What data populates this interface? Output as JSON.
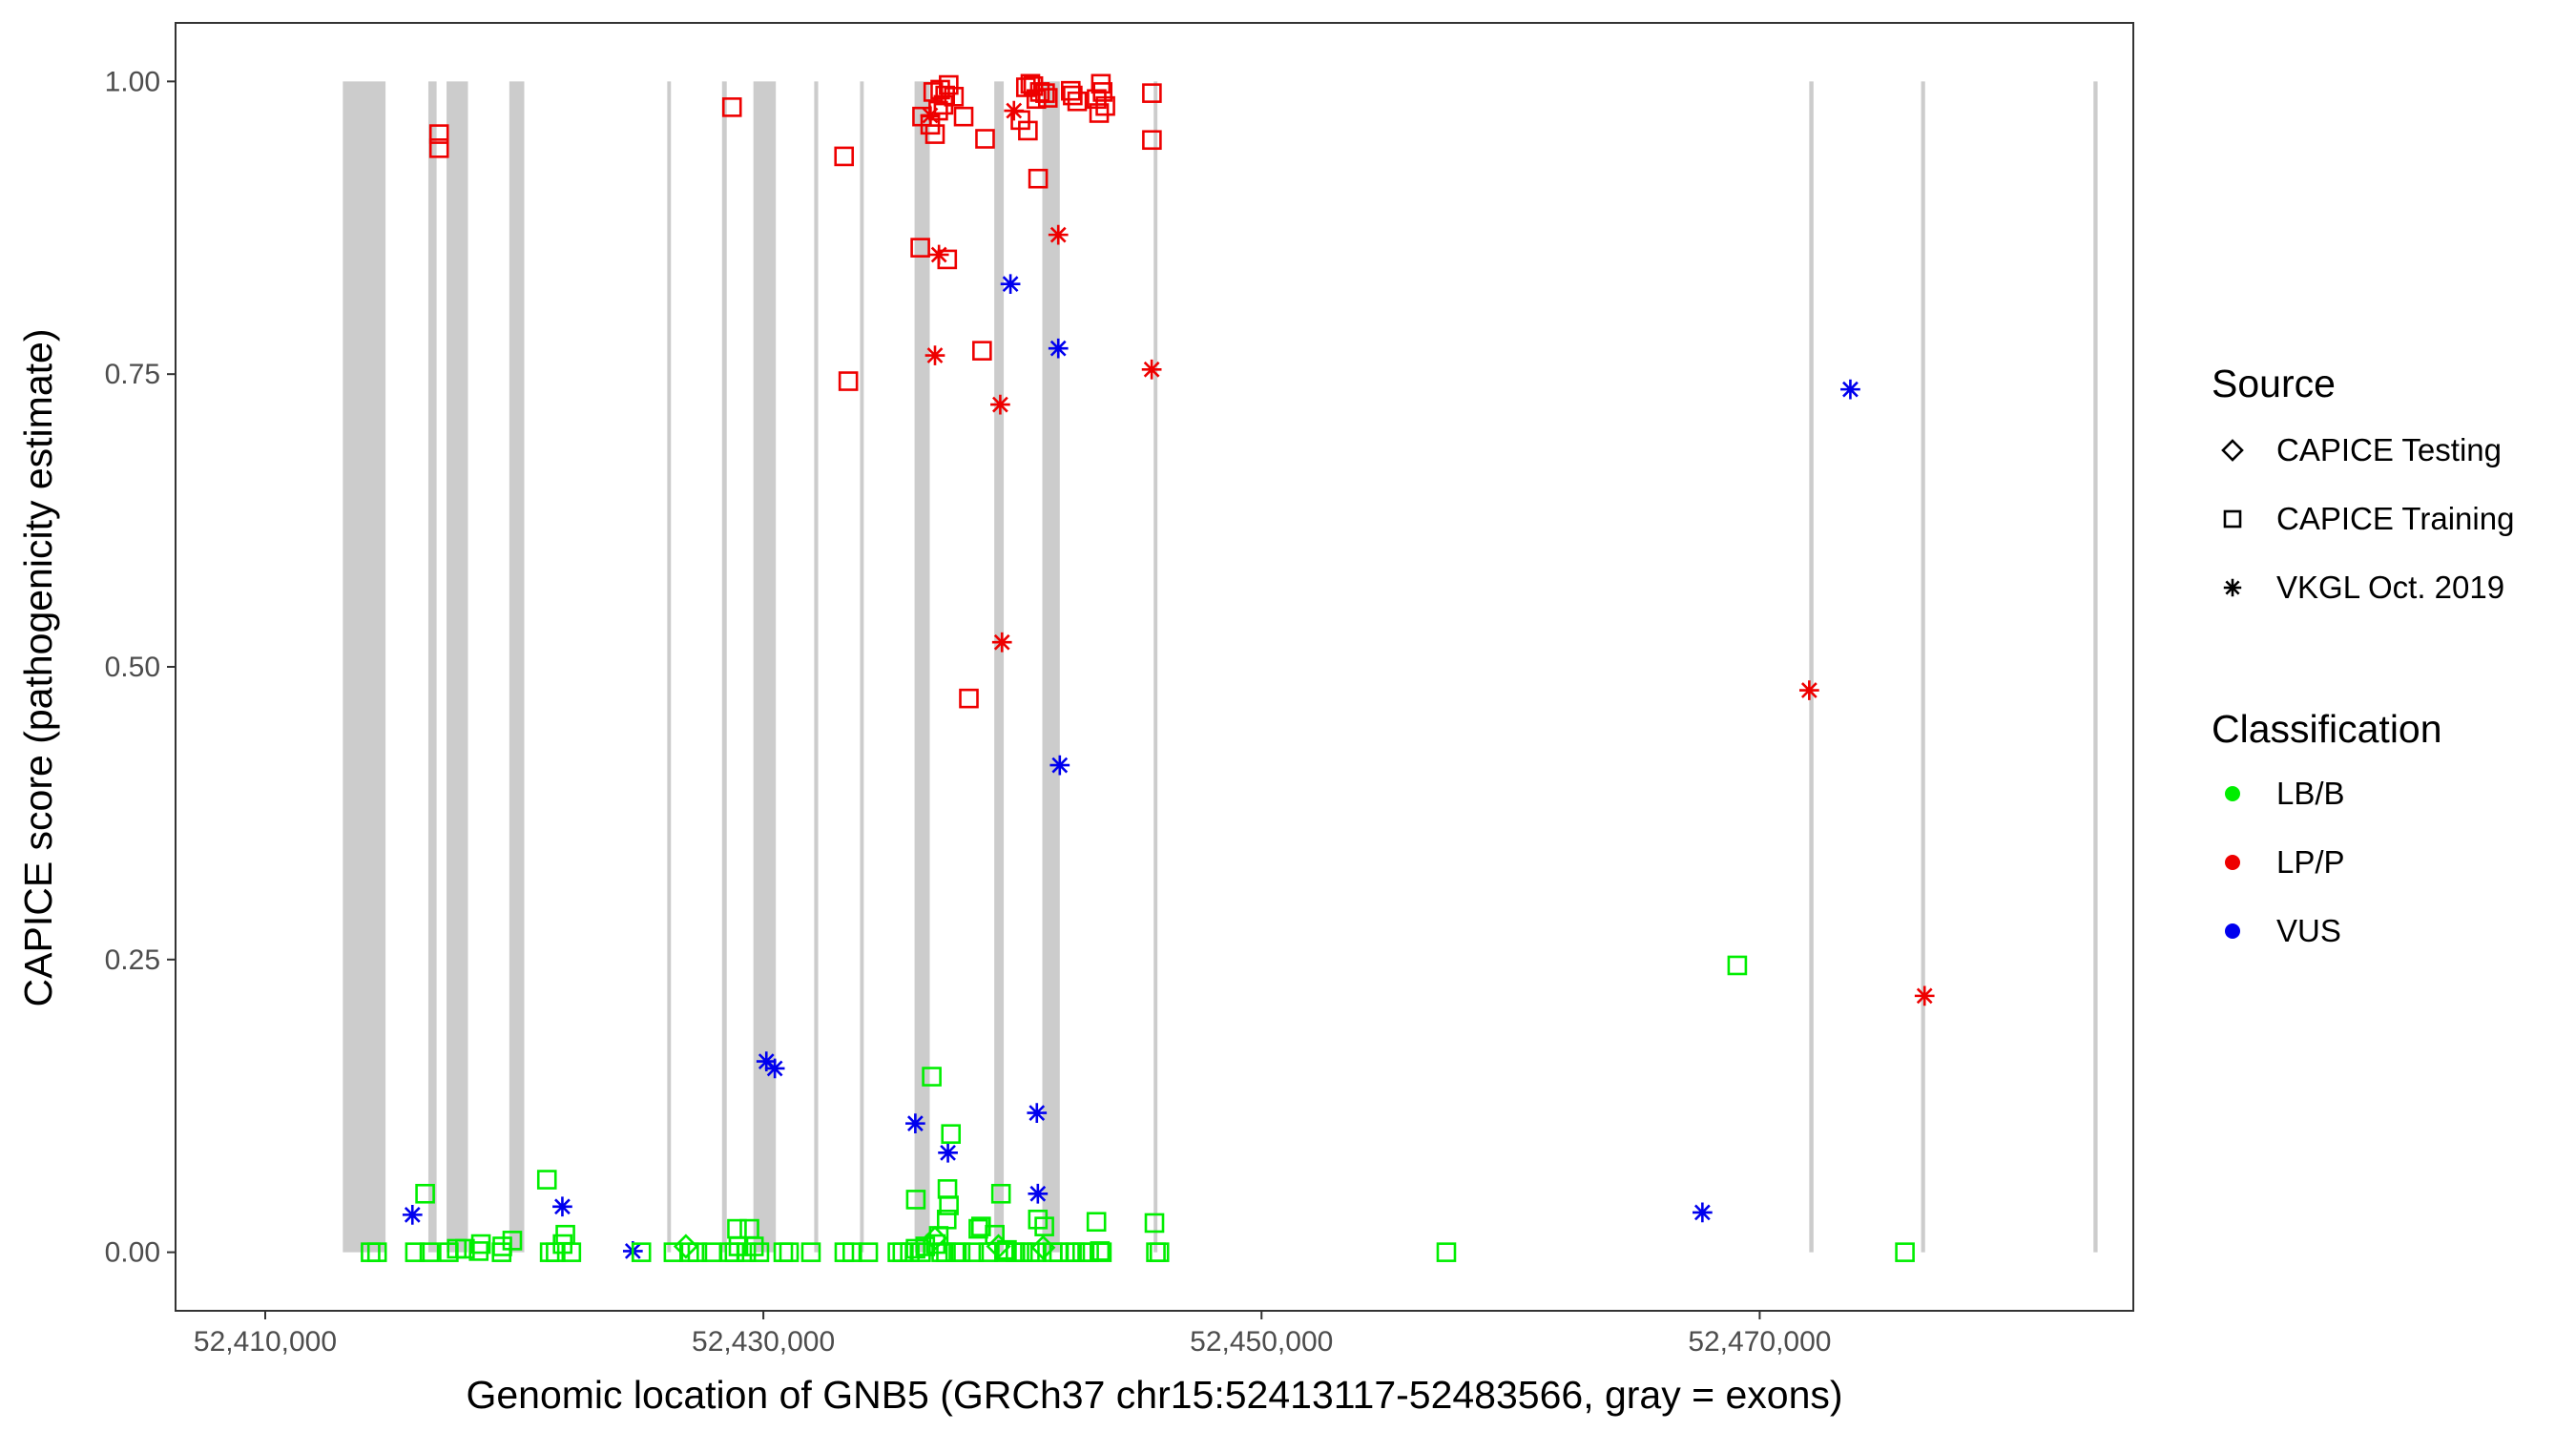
{
  "chart_data": {
    "type": "scatter",
    "title": "",
    "xlabel": "Genomic location of GNB5 (GRCh37 chr15:52413117-52483566, gray = exons)",
    "ylabel": "CAPICE score (pathogenicity estimate)",
    "xlim": [
      52406400,
      52485000
    ],
    "ylim": [
      -0.05,
      1.05
    ],
    "x_ticks": [
      {
        "value": 52410000,
        "label": "52,410,000"
      },
      {
        "value": 52430000,
        "label": "52,430,000"
      },
      {
        "value": 52450000,
        "label": "52,450,000"
      },
      {
        "value": 52470000,
        "label": "52,470,000"
      }
    ],
    "y_ticks": [
      {
        "value": 0.0,
        "label": "0.00"
      },
      {
        "value": 0.25,
        "label": "0.25"
      },
      {
        "value": 0.5,
        "label": "0.50"
      },
      {
        "value": 0.75,
        "label": "0.75"
      },
      {
        "value": 1.0,
        "label": "1.00"
      }
    ],
    "grid": false,
    "exons": [
      [
        52413117,
        52414830
      ],
      [
        52416550,
        52416880
      ],
      [
        52417280,
        52418140
      ],
      [
        52419800,
        52420400
      ],
      [
        52426140,
        52426290
      ],
      [
        52428340,
        52428530
      ],
      [
        52429600,
        52430500
      ],
      [
        52432040,
        52432200
      ],
      [
        52433880,
        52434030
      ],
      [
        52436070,
        52436680
      ],
      [
        52439270,
        52439650
      ],
      [
        52441200,
        52441900
      ],
      [
        52445670,
        52445820
      ],
      [
        52471990,
        52472160
      ],
      [
        52476480,
        52476640
      ],
      [
        52483400,
        52483566
      ]
    ],
    "legend": {
      "placement": "right",
      "shape_title": "Source",
      "shape_items": [
        {
          "label": "CAPICE Testing",
          "shape": "diamond"
        },
        {
          "label": "CAPICE Training",
          "shape": "square"
        },
        {
          "label": "VKGL Oct. 2019",
          "shape": "asterisk"
        }
      ],
      "color_title": "Classification",
      "color_items": [
        {
          "label": "LB/B",
          "color": "#00ee00"
        },
        {
          "label": "LP/P",
          "color": "#ee0000"
        },
        {
          "label": "VUS",
          "color": "#0000ee"
        }
      ]
    },
    "series": [
      {
        "source": "CAPICE Training",
        "classification": "LP/P",
        "shape": "square",
        "color": "#ee0000",
        "points": [
          [
            52416980,
            0.955
          ],
          [
            52416980,
            0.943
          ],
          [
            52428740,
            0.978
          ],
          [
            52433240,
            0.936
          ],
          [
            52433410,
            0.744
          ],
          [
            52436300,
            0.858
          ],
          [
            52436370,
            0.97
          ],
          [
            52436700,
            0.963
          ],
          [
            52436820,
            0.991
          ],
          [
            52436890,
            0.955
          ],
          [
            52437020,
            0.975
          ],
          [
            52437100,
            0.993
          ],
          [
            52437230,
            0.98
          ],
          [
            52437300,
            0.988
          ],
          [
            52437440,
            0.997
          ],
          [
            52437380,
            0.848
          ],
          [
            52437650,
            0.987
          ],
          [
            52438040,
            0.97
          ],
          [
            52438250,
            0.473
          ],
          [
            52438780,
            0.77
          ],
          [
            52438900,
            0.951
          ],
          [
            52440320,
            0.967
          ],
          [
            52440540,
            0.995
          ],
          [
            52440620,
            0.958
          ],
          [
            52440720,
            0.998
          ],
          [
            52440840,
            0.996
          ],
          [
            52440960,
            0.985
          ],
          [
            52441030,
            0.917
          ],
          [
            52441100,
            0.991
          ],
          [
            52441310,
            0.99
          ],
          [
            52441420,
            0.986
          ],
          [
            52442340,
            0.992
          ],
          [
            52442420,
            0.988
          ],
          [
            52442600,
            0.983
          ],
          [
            52443380,
            0.985
          ],
          [
            52443480,
            0.973
          ],
          [
            52443550,
            0.998
          ],
          [
            52443620,
            0.991
          ],
          [
            52443730,
            0.979
          ],
          [
            52445600,
            0.99
          ],
          [
            52445600,
            0.95
          ]
        ]
      },
      {
        "source": "VKGL Oct. 2019",
        "classification": "LP/P",
        "shape": "asterisk",
        "color": "#ee0000",
        "points": [
          [
            52436700,
            0.971
          ],
          [
            52436890,
            0.766
          ],
          [
            52437050,
            0.852
          ],
          [
            52439510,
            0.724
          ],
          [
            52439580,
            0.521
          ],
          [
            52440060,
            0.975
          ],
          [
            52441840,
            0.869
          ],
          [
            52445590,
            0.754
          ],
          [
            52471990,
            0.48
          ],
          [
            52476620,
            0.219
          ]
        ]
      },
      {
        "source": "VKGL Oct. 2019",
        "classification": "VUS",
        "shape": "asterisk",
        "color": "#0000ee",
        "points": [
          [
            52415910,
            0.032
          ],
          [
            52421930,
            0.039
          ],
          [
            52424760,
            0.001
          ],
          [
            52430120,
            0.163
          ],
          [
            52430460,
            0.157
          ],
          [
            52436100,
            0.11
          ],
          [
            52437410,
            0.085
          ],
          [
            52439920,
            0.827
          ],
          [
            52440980,
            0.119
          ],
          [
            52441020,
            0.05
          ],
          [
            52441840,
            0.772
          ],
          [
            52441900,
            0.416
          ],
          [
            52467700,
            0.034
          ],
          [
            52473640,
            0.737
          ]
        ]
      },
      {
        "source": "CAPICE Testing",
        "classification": "LB/B",
        "shape": "diamond",
        "color": "#00ee00",
        "points": [
          [
            52426890,
            0.005
          ],
          [
            52436890,
            0.012
          ],
          [
            52439440,
            0.005
          ],
          [
            52441230,
            0.004
          ]
        ]
      },
      {
        "source": "CAPICE Training",
        "classification": "LB/B",
        "shape": "square",
        "color": "#00ee00",
        "points": [
          [
            52414230,
            0.0
          ],
          [
            52414490,
            0.0
          ],
          [
            52416010,
            0.0
          ],
          [
            52416420,
            0.05
          ],
          [
            52416590,
            0.0
          ],
          [
            52417370,
            0.0
          ],
          [
            52417690,
            0.003
          ],
          [
            52418020,
            0.003
          ],
          [
            52418570,
            0.001
          ],
          [
            52418660,
            0.007
          ],
          [
            52419490,
            0.0
          ],
          [
            52419520,
            0.005
          ],
          [
            52419920,
            0.01
          ],
          [
            52421310,
            0.062
          ],
          [
            52421420,
            0.0
          ],
          [
            52421660,
            0.0
          ],
          [
            52421940,
            0.007
          ],
          [
            52422050,
            0.015
          ],
          [
            52422290,
            0.0
          ],
          [
            52425100,
            0.0
          ],
          [
            52426390,
            0.0
          ],
          [
            52427020,
            0.0
          ],
          [
            52427350,
            0.0
          ],
          [
            52427920,
            0.0
          ],
          [
            52428650,
            0.0
          ],
          [
            52428840,
            0.0
          ],
          [
            52428940,
            0.02
          ],
          [
            52429000,
            0.005
          ],
          [
            52429310,
            0.0
          ],
          [
            52429440,
            0.02
          ],
          [
            52429620,
            0.005
          ],
          [
            52429840,
            0.0
          ],
          [
            52430800,
            0.0
          ],
          [
            52431030,
            0.0
          ],
          [
            52431910,
            0.0
          ],
          [
            52433250,
            0.0
          ],
          [
            52433570,
            0.0
          ],
          [
            52434210,
            0.0
          ],
          [
            52435380,
            0.0
          ],
          [
            52435580,
            0.0
          ],
          [
            52435880,
            0.0
          ],
          [
            52436110,
            0.003
          ],
          [
            52436120,
            0.045
          ],
          [
            52436330,
            0.0
          ],
          [
            52436500,
            0.005
          ],
          [
            52436760,
            0.15
          ],
          [
            52436920,
            0.007
          ],
          [
            52437040,
            0.014
          ],
          [
            52437140,
            0.0
          ],
          [
            52437330,
            0.0
          ],
          [
            52437360,
            0.028
          ],
          [
            52437390,
            0.054
          ],
          [
            52437450,
            0.04
          ],
          [
            52437530,
            0.101
          ],
          [
            52437700,
            0.0
          ],
          [
            52437920,
            0.0
          ],
          [
            52438460,
            0.0
          ],
          [
            52438630,
            0.02
          ],
          [
            52438740,
            0.022
          ],
          [
            52439030,
            0.0
          ],
          [
            52439290,
            0.015
          ],
          [
            52439540,
            0.05
          ],
          [
            52439660,
            0.0
          ],
          [
            52439780,
            0.002
          ],
          [
            52440120,
            0.0
          ],
          [
            52440420,
            0.0
          ],
          [
            52440700,
            0.0
          ],
          [
            52440970,
            0.0
          ],
          [
            52441020,
            0.028
          ],
          [
            52441280,
            0.022
          ],
          [
            52441610,
            0.0
          ],
          [
            52441870,
            0.0
          ],
          [
            52442310,
            0.0
          ],
          [
            52442520,
            0.0
          ],
          [
            52442800,
            0.0
          ],
          [
            52443080,
            0.0
          ],
          [
            52443370,
            0.026
          ],
          [
            52443510,
            0.001
          ],
          [
            52443590,
            0.0
          ],
          [
            52445700,
            0.025
          ],
          [
            52445760,
            0.0
          ],
          [
            52445900,
            0.0
          ],
          [
            52457420,
            0.0
          ],
          [
            52469100,
            0.245
          ],
          [
            52475830,
            0.0
          ]
        ]
      }
    ]
  }
}
